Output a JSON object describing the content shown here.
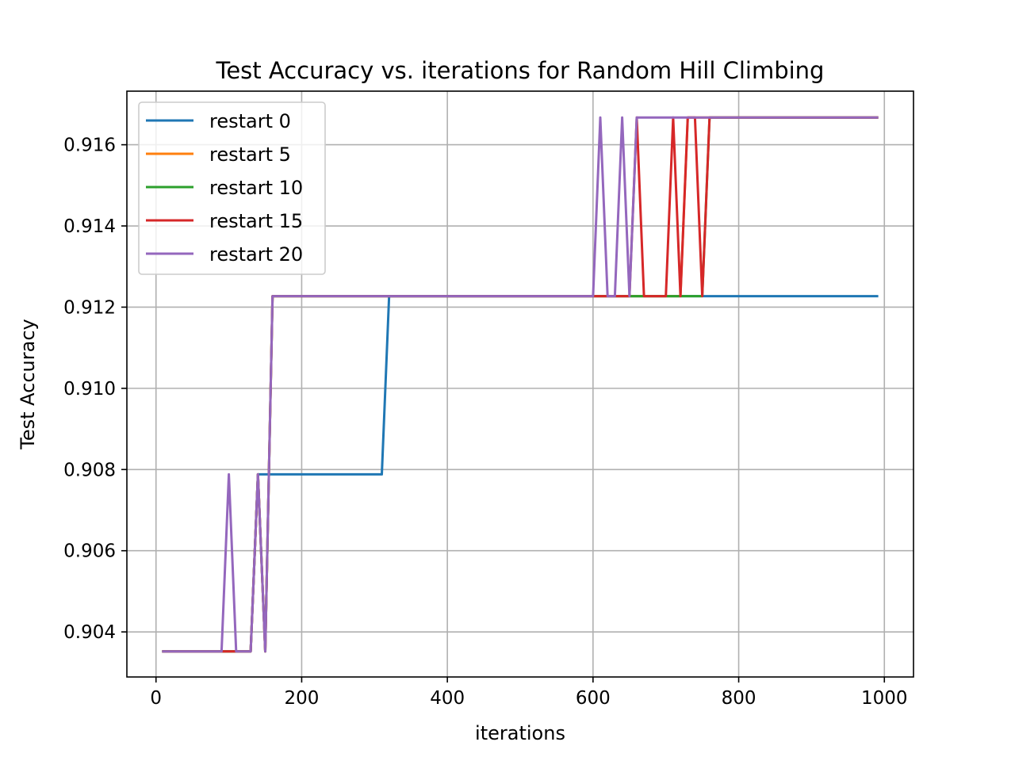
{
  "chart_data": {
    "type": "line",
    "title": "Test Accuracy vs. iterations for Random Hill Climbing",
    "xlabel": "iterations",
    "ylabel": "Test Accuracy",
    "xlim": [
      -40,
      1040
    ],
    "ylim": [
      0.90289,
      0.91732
    ],
    "xticks": [
      0,
      200,
      400,
      600,
      800,
      1000
    ],
    "yticks": [
      0.904,
      0.906,
      0.908,
      0.91,
      0.912,
      0.914,
      0.916
    ],
    "xtick_labels": [
      "0",
      "200",
      "400",
      "600",
      "800",
      "1000"
    ],
    "ytick_labels": [
      "0.904",
      "0.906",
      "0.908",
      "0.910",
      "0.912",
      "0.914",
      "0.916"
    ],
    "grid": true,
    "legend_position": "upper-left",
    "series": [
      {
        "name": "restart 0",
        "color": "#1f77b4",
        "points": [
          [
            10,
            0.90352
          ],
          [
            130,
            0.90352
          ],
          [
            140,
            0.90788
          ],
          [
            310,
            0.90788
          ],
          [
            320,
            0.91227
          ],
          [
            990,
            0.91227
          ]
        ]
      },
      {
        "name": "restart 5",
        "color": "#ff7f0e",
        "points": [
          [
            10,
            0.90352
          ],
          [
            130,
            0.90352
          ],
          [
            140,
            0.90788
          ],
          [
            150,
            0.90352
          ],
          [
            160,
            0.91227
          ],
          [
            720,
            0.91227
          ],
          [
            730,
            0.91667
          ],
          [
            990,
            0.91667
          ]
        ]
      },
      {
        "name": "restart 10",
        "color": "#2ca02c",
        "points": [
          [
            10,
            0.90352
          ],
          [
            130,
            0.90352
          ],
          [
            140,
            0.90788
          ],
          [
            150,
            0.90352
          ],
          [
            160,
            0.91227
          ],
          [
            750,
            0.91227
          ],
          [
            760,
            0.91667
          ],
          [
            990,
            0.91667
          ]
        ]
      },
      {
        "name": "restart 15",
        "color": "#d62728",
        "points": [
          [
            10,
            0.90352
          ],
          [
            130,
            0.90352
          ],
          [
            140,
            0.90788
          ],
          [
            150,
            0.90352
          ],
          [
            160,
            0.91227
          ],
          [
            650,
            0.91227
          ],
          [
            660,
            0.91667
          ],
          [
            670,
            0.91227
          ],
          [
            700,
            0.91227
          ],
          [
            710,
            0.91667
          ],
          [
            720,
            0.91227
          ],
          [
            730,
            0.91667
          ],
          [
            740,
            0.91667
          ],
          [
            750,
            0.91227
          ],
          [
            760,
            0.91667
          ],
          [
            990,
            0.91667
          ]
        ]
      },
      {
        "name": "restart 20",
        "color": "#9467bd",
        "points": [
          [
            10,
            0.90352
          ],
          [
            90,
            0.90352
          ],
          [
            100,
            0.90788
          ],
          [
            110,
            0.90352
          ],
          [
            130,
            0.90352
          ],
          [
            140,
            0.90788
          ],
          [
            150,
            0.90352
          ],
          [
            160,
            0.91227
          ],
          [
            600,
            0.91227
          ],
          [
            610,
            0.91667
          ],
          [
            620,
            0.91227
          ],
          [
            630,
            0.91227
          ],
          [
            640,
            0.91667
          ],
          [
            650,
            0.91227
          ],
          [
            660,
            0.91667
          ],
          [
            990,
            0.91667
          ]
        ]
      }
    ]
  }
}
